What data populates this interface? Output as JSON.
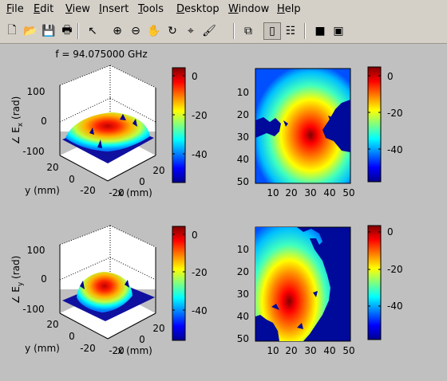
{
  "menubar": {
    "items": [
      {
        "label": "File",
        "ul": "F",
        "rest": "ile"
      },
      {
        "label": "Edit",
        "ul": "E",
        "rest": "dit"
      },
      {
        "label": "View",
        "ul": "V",
        "rest": "iew"
      },
      {
        "label": "Insert",
        "ul": "I",
        "rest": "nsert"
      },
      {
        "label": "Tools",
        "ul": "T",
        "rest": "ools"
      },
      {
        "label": "Desktop",
        "ul": "D",
        "rest": "esktop"
      },
      {
        "label": "Window",
        "ul": "W",
        "rest": "indow"
      },
      {
        "label": "Help",
        "ul": "H",
        "rest": "elp"
      }
    ]
  },
  "toolbar": {
    "icons": [
      "new-file-icon",
      "open-folder-icon",
      "save-icon",
      "print-icon",
      "arrow-pointer-icon",
      "zoom-in-icon",
      "zoom-out-icon",
      "pan-hand-icon",
      "rotate-3d-icon",
      "data-cursor-icon",
      "brush-icon",
      "link-plot-icon",
      "colorbar-icon",
      "legend-icon",
      "hide-plot-tools-icon",
      "show-plot-tools-icon"
    ]
  },
  "figure": {
    "title": "f = 94.075000 GHz",
    "colorbar_ticks": [
      "0",
      "-20",
      "-40"
    ],
    "surface_z_ticks": [
      "100",
      "0",
      "-100"
    ],
    "surface_y_ticks": [
      "20",
      "0",
      "-20"
    ],
    "surface_x_ticks": [
      "-20",
      "0",
      "20"
    ],
    "surface_ylabel": "y (mm)",
    "surface_xlabel": "x (mm)",
    "top_zlabel": "∠ E",
    "top_zlabel_sub": "x",
    "bottom_zlabel": "∠ E",
    "bottom_zlabel_sub": "y",
    "zlabel_unit": " (rad)",
    "image_x_ticks": [
      "10",
      "20",
      "30",
      "40",
      "50"
    ],
    "image_y_ticks": [
      "10",
      "20",
      "30",
      "40",
      "50"
    ]
  },
  "colors": {
    "jet_dark_red": "#800000",
    "jet_red": "#ff0000",
    "jet_yellow": "#ffff00",
    "jet_cyan": "#00ffff",
    "jet_blue": "#0000ff",
    "jet_dark_blue": "#00008f",
    "window_bg": "#c0c0c0",
    "chrome_bg": "#d4d0c8"
  }
}
